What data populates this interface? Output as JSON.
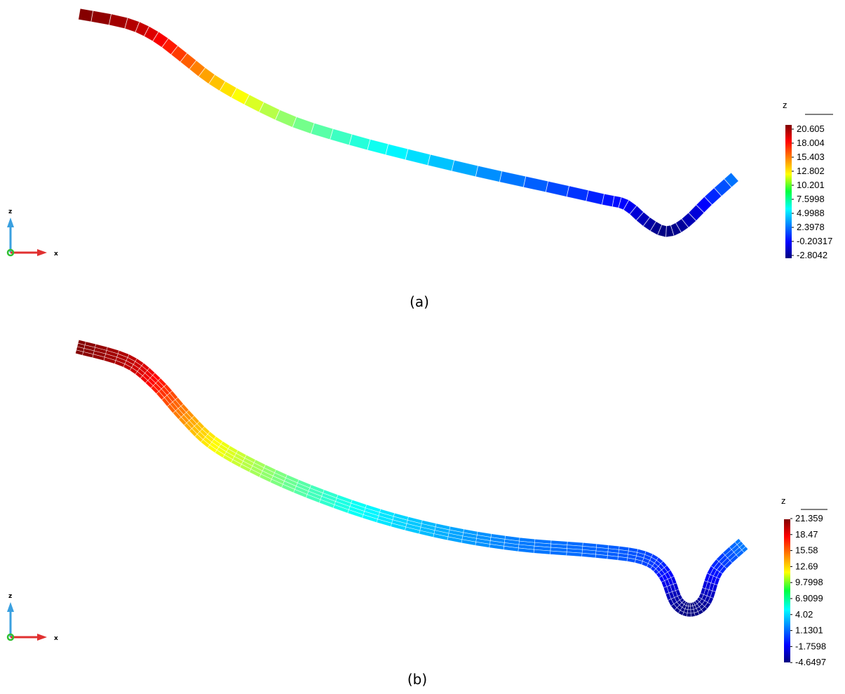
{
  "panels": [
    {
      "caption": "(a)",
      "colorbar": {
        "title": "z",
        "labels": [
          "20.605",
          "18.004",
          "15.403",
          "12.802",
          "10.201",
          "7.5998",
          "4.9988",
          "2.3978",
          "-0.20317",
          "-2.8042"
        ]
      },
      "triad": {
        "vertical": "z",
        "horizontal": "x"
      }
    },
    {
      "caption": "(b)",
      "colorbar": {
        "title": "z",
        "labels": [
          "21.359",
          "18.47",
          "15.58",
          "12.69",
          "9.7998",
          "6.9099",
          "4.02",
          "1.1301",
          "-1.7598",
          "-4.6497"
        ]
      },
      "triad": {
        "vertical": "z",
        "horizontal": "x"
      }
    }
  ]
}
